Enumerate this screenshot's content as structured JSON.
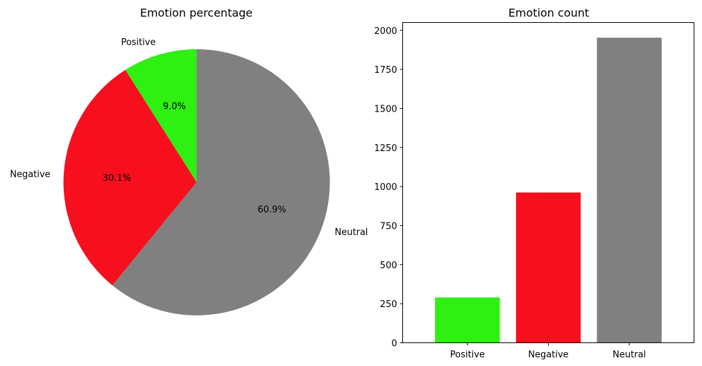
{
  "chart_data": [
    {
      "type": "pie",
      "title": "Emotion percentage",
      "labels": [
        "Positive",
        "Negative",
        "Neutral"
      ],
      "values": [
        9.0,
        30.1,
        60.9
      ],
      "value_labels": [
        "9.0%",
        "30.1%",
        "60.9%"
      ],
      "colors": [
        "#2ef012",
        "#f70f1e",
        "#808080"
      ],
      "start_angle": 90,
      "direction": "counterclockwise"
    },
    {
      "type": "bar",
      "title": "Emotion count",
      "categories": [
        "Positive",
        "Negative",
        "Neutral"
      ],
      "values": [
        290,
        962,
        1953
      ],
      "colors": [
        "#2ef012",
        "#f70f1e",
        "#808080"
      ],
      "xlabel": "",
      "ylabel": "",
      "ylim": [
        0,
        2050
      ],
      "yticks": [
        0,
        250,
        500,
        750,
        1000,
        1250,
        1500,
        1750,
        2000
      ],
      "grid": false
    }
  ]
}
